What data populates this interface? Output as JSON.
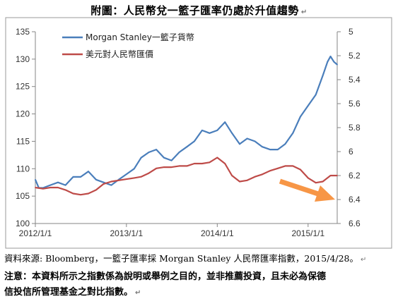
{
  "figure": {
    "title": "附圖：人民幣兌一籃子匯率仍處於升值趨勢",
    "source": "資料來源: Bloomberg，一籃子匯率採 Morgan Stanley 人民幣匯率指數，2015/4/28。",
    "note_line1": "注意：本資料所示之指數係為說明或舉例之目的，並非推薦投資，且未必為保德",
    "note_line2": "信投信所管理基金之對比指數。",
    "return_mark": "↵"
  },
  "chart_data": {
    "type": "line",
    "title": "",
    "xlabel": "",
    "ylabel": "",
    "ylabel_right": "",
    "x_ticks": [
      "2012/1/1",
      "2013/1/1",
      "2014/1/1",
      "2015/1/1"
    ],
    "x_range": [
      "2012/1/1",
      "2015/4/28"
    ],
    "ylim_left": [
      100,
      135
    ],
    "yticks_left": [
      100,
      105,
      110,
      115,
      120,
      125,
      130,
      135
    ],
    "ylim_right_inverted": [
      6.6,
      5.0
    ],
    "yticks_right": [
      5,
      5.2,
      5.4,
      5.6,
      5.8,
      6,
      6.2,
      6.4,
      6.6
    ],
    "grid": false,
    "legend_position": "top-left",
    "annotation": "orange arrow pointing down-right near latest USD/CNY values",
    "series": [
      {
        "name": "Morgan Stanley一籃子貨幣",
        "axis": "left",
        "color": "#4a7ebb",
        "x": [
          "2012/1/1",
          "2012/1/15",
          "2012/2/1",
          "2012/3/1",
          "2012/4/1",
          "2012/5/1",
          "2012/6/1",
          "2012/7/1",
          "2012/8/1",
          "2012/9/1",
          "2012/10/1",
          "2012/11/1",
          "2012/12/1",
          "2013/1/1",
          "2013/2/1",
          "2013/3/1",
          "2013/4/1",
          "2013/5/1",
          "2013/6/1",
          "2013/7/1",
          "2013/8/1",
          "2013/9/1",
          "2013/10/1",
          "2013/11/1",
          "2013/12/1",
          "2014/1/1",
          "2014/2/1",
          "2014/3/1",
          "2014/4/1",
          "2014/5/1",
          "2014/6/1",
          "2014/7/1",
          "2014/8/1",
          "2014/9/1",
          "2014/10/1",
          "2014/11/1",
          "2014/12/1",
          "2015/1/1",
          "2015/2/1",
          "2015/3/1",
          "2015/3/20",
          "2015/4/1",
          "2015/4/15",
          "2015/4/28"
        ],
        "values": [
          108.0,
          106.5,
          106.5,
          107.0,
          107.5,
          107.0,
          108.5,
          108.5,
          109.5,
          108.0,
          107.5,
          107.0,
          108.0,
          109.0,
          110.0,
          112.0,
          113.0,
          113.5,
          112.0,
          111.5,
          113.0,
          114.0,
          115.0,
          117.0,
          116.5,
          117.0,
          118.5,
          116.5,
          114.5,
          115.5,
          115.0,
          114.0,
          113.5,
          113.5,
          114.5,
          116.5,
          119.5,
          121.5,
          123.5,
          127.0,
          129.5,
          130.5,
          129.5,
          129.0
        ]
      },
      {
        "name": "美元對人民幣匯價",
        "axis": "right",
        "color": "#be4b48",
        "x": [
          "2012/1/1",
          "2012/2/1",
          "2012/3/1",
          "2012/4/1",
          "2012/5/1",
          "2012/6/1",
          "2012/7/1",
          "2012/8/1",
          "2012/9/1",
          "2012/10/1",
          "2012/11/1",
          "2012/12/1",
          "2013/1/1",
          "2013/2/1",
          "2013/3/1",
          "2013/4/1",
          "2013/5/1",
          "2013/6/1",
          "2013/7/1",
          "2013/8/1",
          "2013/9/1",
          "2013/10/1",
          "2013/11/1",
          "2013/12/1",
          "2014/1/1",
          "2014/2/1",
          "2014/3/1",
          "2014/4/1",
          "2014/5/1",
          "2014/6/1",
          "2014/7/1",
          "2014/8/1",
          "2014/9/1",
          "2014/10/1",
          "2014/11/1",
          "2014/12/1",
          "2015/1/1",
          "2015/2/1",
          "2015/3/1",
          "2015/4/1",
          "2015/4/28"
        ],
        "values": [
          6.3,
          6.31,
          6.3,
          6.3,
          6.32,
          6.35,
          6.36,
          6.35,
          6.32,
          6.27,
          6.25,
          6.24,
          6.23,
          6.22,
          6.21,
          6.18,
          6.14,
          6.13,
          6.13,
          6.12,
          6.12,
          6.1,
          6.1,
          6.09,
          6.05,
          6.1,
          6.2,
          6.25,
          6.24,
          6.21,
          6.19,
          6.16,
          6.14,
          6.12,
          6.12,
          6.15,
          6.22,
          6.26,
          6.25,
          6.2,
          6.2
        ]
      }
    ]
  }
}
